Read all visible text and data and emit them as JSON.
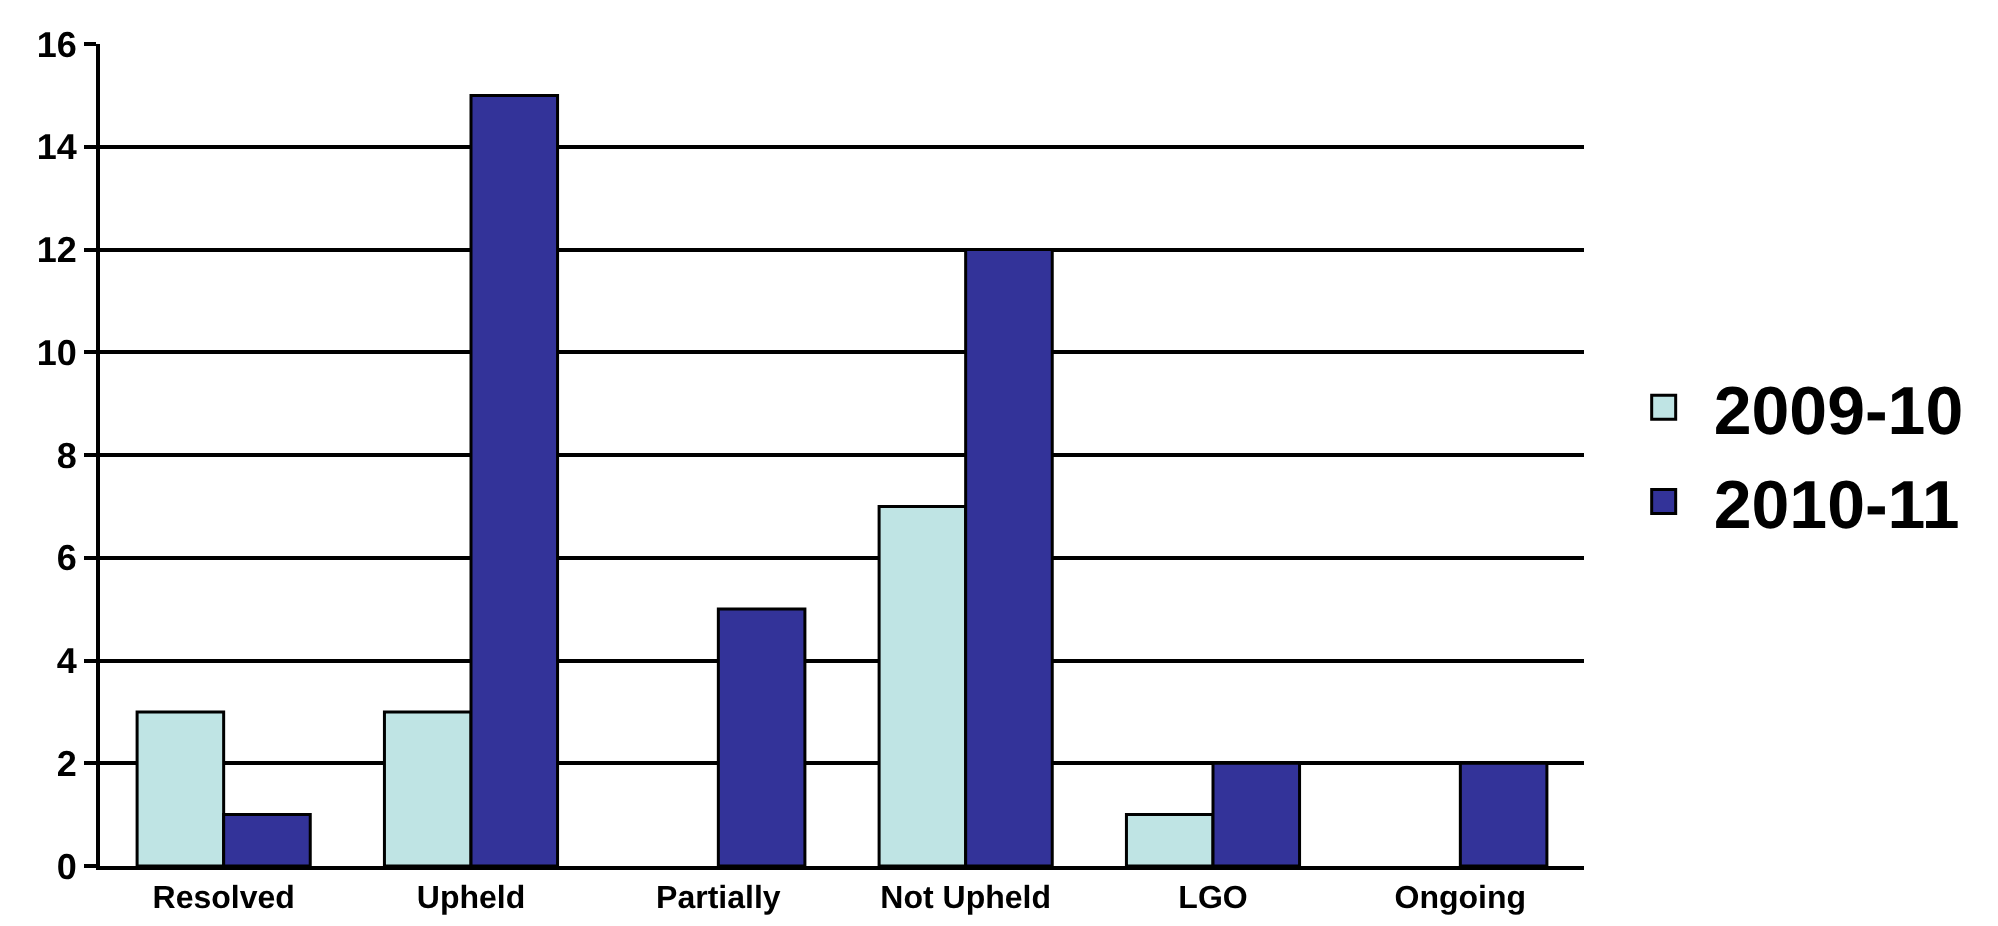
{
  "chart_data": {
    "type": "bar",
    "categories": [
      "Resolved",
      "Upheld",
      "Partially",
      "Not Upheld",
      "LGO",
      "Ongoing"
    ],
    "series": [
      {
        "name": "2009-10",
        "color": "#bfe4e4",
        "values": [
          3,
          3,
          0,
          7,
          1,
          0
        ]
      },
      {
        "name": "2010-11",
        "color": "#333399",
        "values": [
          1,
          15,
          5,
          12,
          2,
          2
        ]
      }
    ],
    "ylim": [
      0,
      16
    ],
    "yticks": [
      0,
      2,
      4,
      6,
      8,
      10,
      12,
      14,
      16
    ],
    "grid": "y",
    "legend": "right"
  }
}
